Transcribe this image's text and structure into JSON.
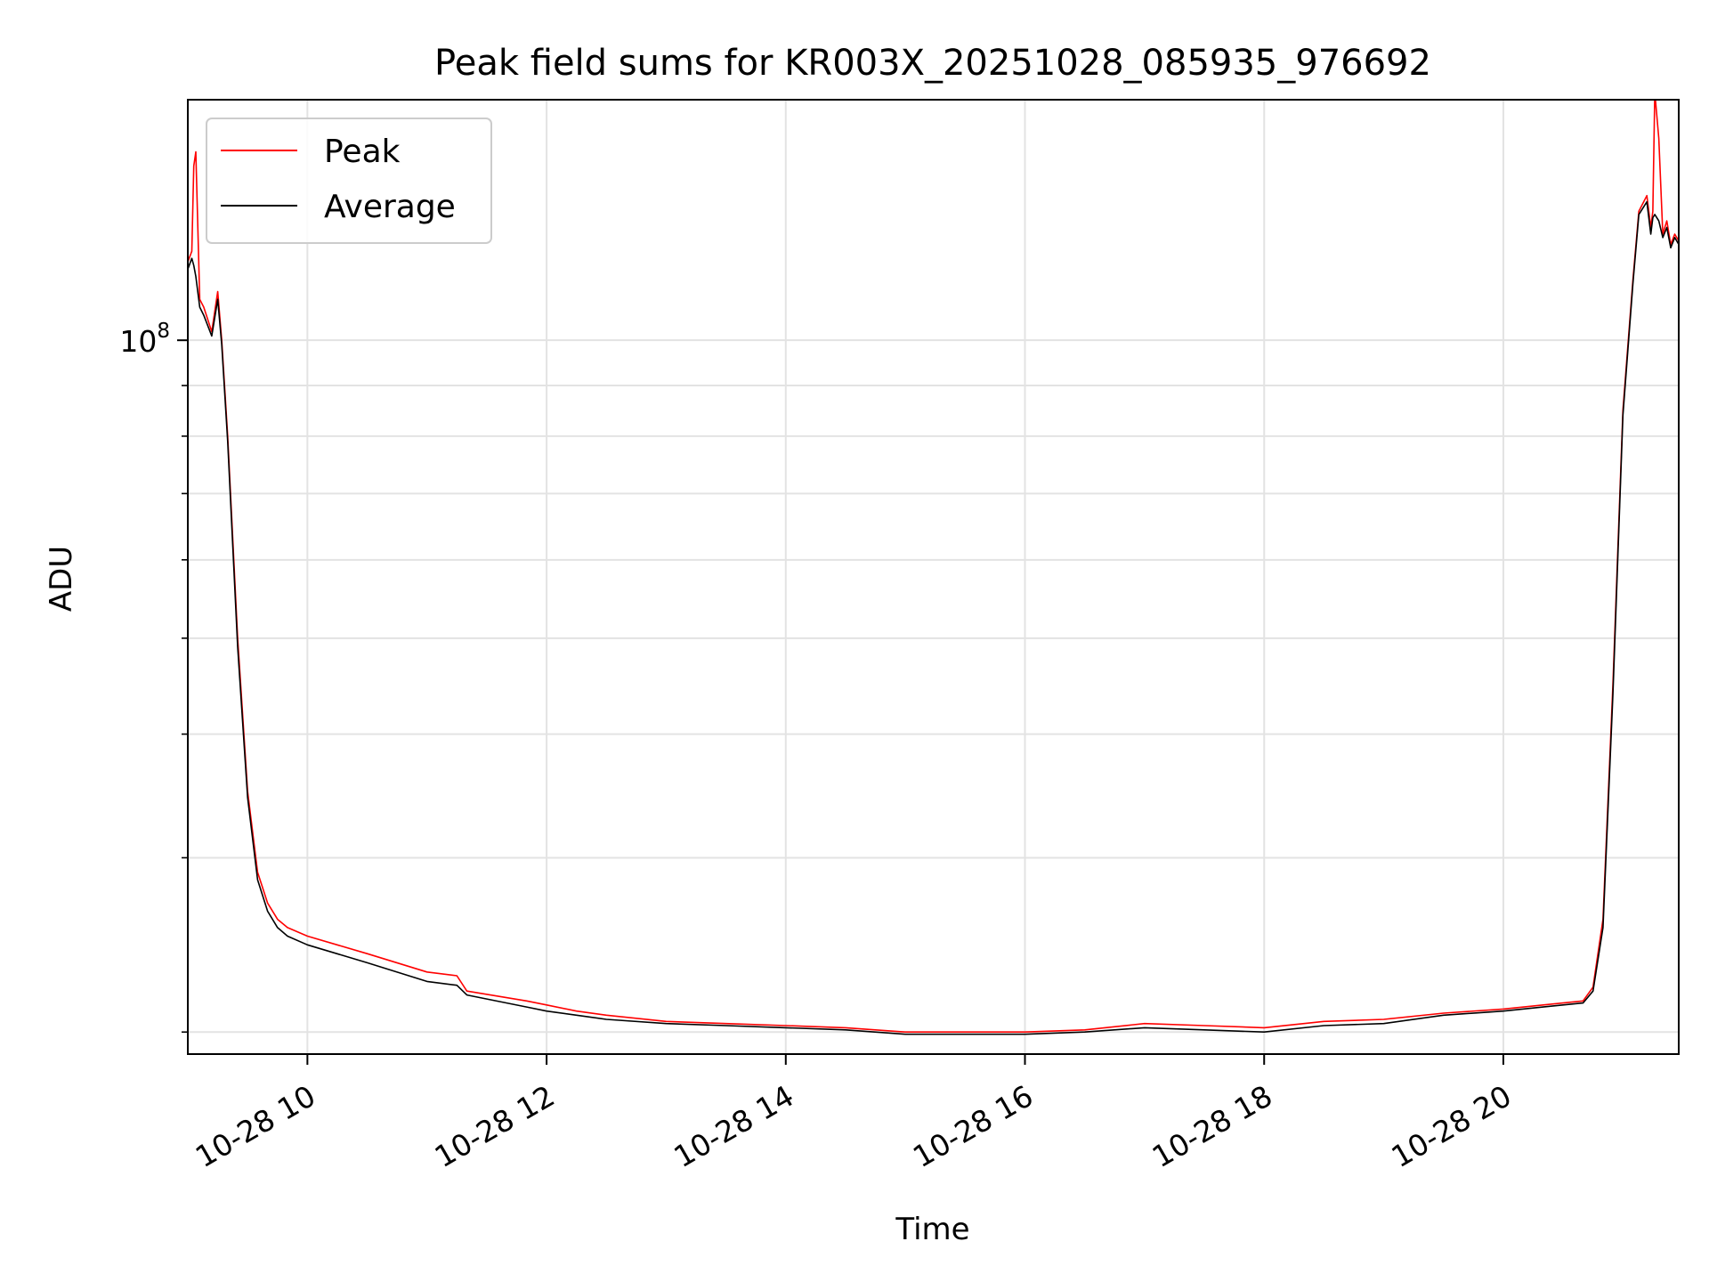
{
  "chart_data": {
    "type": "line",
    "title": "Peak field sums for KR003X_20251028_085935_976692",
    "xlabel": "Time",
    "ylabel": "ADU",
    "yscale": "log",
    "grid": true,
    "legend_location": "upper-left",
    "x_tick_labels": [
      "10-28 10",
      "10-28 12",
      "10-28 14",
      "10-28 16",
      "10-28 18",
      "10-28 20"
    ],
    "x_ticks": [
      "2025-10-28 10:00",
      "2025-10-28 12:00",
      "2025-10-28 14:00",
      "2025-10-28 16:00",
      "2025-10-28 18:00",
      "2025-10-28 20:00"
    ],
    "xlim": [
      "2025-10-28 09:00",
      "2025-10-28 21:28"
    ],
    "y_major_ticks": [
      {
        "value": 100000000,
        "mantissa": "10",
        "exponent": "8"
      }
    ],
    "y_minor_ticks": [
      20000000,
      30000000,
      40000000,
      50000000,
      60000000,
      70000000,
      80000000,
      90000000
    ],
    "ylim": [
      19000000,
      175000000
    ],
    "series": [
      {
        "name": "Peak",
        "color": "#ff0000",
        "x": [
          "2025-10-28 09:00",
          "2025-10-28 09:02",
          "2025-10-28 09:03",
          "2025-10-28 09:04",
          "2025-10-28 09:06",
          "2025-10-28 09:08",
          "2025-10-28 09:12",
          "2025-10-28 09:15",
          "2025-10-28 09:17",
          "2025-10-28 09:20",
          "2025-10-28 09:25",
          "2025-10-28 09:30",
          "2025-10-28 09:35",
          "2025-10-28 09:40",
          "2025-10-28 09:45",
          "2025-10-28 09:50",
          "2025-10-28 10:00",
          "2025-10-28 10:30",
          "2025-10-28 11:00",
          "2025-10-28 11:15",
          "2025-10-28 11:20",
          "2025-10-28 11:50",
          "2025-10-28 12:00",
          "2025-10-28 12:15",
          "2025-10-28 12:30",
          "2025-10-28 13:00",
          "2025-10-28 13:30",
          "2025-10-28 14:00",
          "2025-10-28 14:30",
          "2025-10-28 15:00",
          "2025-10-28 15:30",
          "2025-10-28 16:00",
          "2025-10-28 16:30",
          "2025-10-28 17:00",
          "2025-10-28 17:30",
          "2025-10-28 18:00",
          "2025-10-28 18:30",
          "2025-10-28 19:00",
          "2025-10-28 19:30",
          "2025-10-28 20:00",
          "2025-10-28 20:20",
          "2025-10-28 20:40",
          "2025-10-28 20:45",
          "2025-10-28 20:50",
          "2025-10-28 20:55",
          "2025-10-28 21:00",
          "2025-10-28 21:05",
          "2025-10-28 21:08",
          "2025-10-28 21:12",
          "2025-10-28 21:14",
          "2025-10-28 21:15",
          "2025-10-28 21:16",
          "2025-10-28 21:18",
          "2025-10-28 21:20",
          "2025-10-28 21:22",
          "2025-10-28 21:24",
          "2025-10-28 21:26",
          "2025-10-28 21:28"
        ],
        "y": [
          120000000,
          123000000,
          150000000,
          155000000,
          110000000,
          108000000,
          102000000,
          112000000,
          100000000,
          80000000,
          50000000,
          35000000,
          29000000,
          27000000,
          26000000,
          25500000,
          25000000,
          24000000,
          23000000,
          22800000,
          22000000,
          21500000,
          21300000,
          21000000,
          20800000,
          20500000,
          20400000,
          20300000,
          20200000,
          20000000,
          20000000,
          20000000,
          20100000,
          20400000,
          20300000,
          20200000,
          20500000,
          20600000,
          20900000,
          21100000,
          21300000,
          21500000,
          22200000,
          26000000,
          45000000,
          85000000,
          115000000,
          135000000,
          140000000,
          130000000,
          135000000,
          178000000,
          160000000,
          128000000,
          132000000,
          125000000,
          128000000,
          126000000
        ]
      },
      {
        "name": "Average",
        "color": "#000000",
        "x": [
          "2025-10-28 09:00",
          "2025-10-28 09:02",
          "2025-10-28 09:03",
          "2025-10-28 09:04",
          "2025-10-28 09:06",
          "2025-10-28 09:08",
          "2025-10-28 09:12",
          "2025-10-28 09:15",
          "2025-10-28 09:17",
          "2025-10-28 09:20",
          "2025-10-28 09:25",
          "2025-10-28 09:30",
          "2025-10-28 09:35",
          "2025-10-28 09:40",
          "2025-10-28 09:45",
          "2025-10-28 09:50",
          "2025-10-28 10:00",
          "2025-10-28 10:30",
          "2025-10-28 11:00",
          "2025-10-28 11:15",
          "2025-10-28 11:20",
          "2025-10-28 11:50",
          "2025-10-28 12:00",
          "2025-10-28 12:15",
          "2025-10-28 12:30",
          "2025-10-28 13:00",
          "2025-10-28 13:30",
          "2025-10-28 14:00",
          "2025-10-28 14:30",
          "2025-10-28 15:00",
          "2025-10-28 15:30",
          "2025-10-28 16:00",
          "2025-10-28 16:30",
          "2025-10-28 17:00",
          "2025-10-28 17:30",
          "2025-10-28 18:00",
          "2025-10-28 18:30",
          "2025-10-28 19:00",
          "2025-10-28 19:30",
          "2025-10-28 20:00",
          "2025-10-28 20:20",
          "2025-10-28 20:40",
          "2025-10-28 20:45",
          "2025-10-28 20:50",
          "2025-10-28 20:55",
          "2025-10-28 21:00",
          "2025-10-28 21:05",
          "2025-10-28 21:08",
          "2025-10-28 21:12",
          "2025-10-28 21:14",
          "2025-10-28 21:15",
          "2025-10-28 21:16",
          "2025-10-28 21:18",
          "2025-10-28 21:20",
          "2025-10-28 21:22",
          "2025-10-28 21:24",
          "2025-10-28 21:26",
          "2025-10-28 21:28"
        ],
        "y": [
          118000000,
          121000000,
          119000000,
          116000000,
          108000000,
          106000000,
          101000000,
          110000000,
          99000000,
          79000000,
          49000000,
          34500000,
          28500000,
          26500000,
          25500000,
          25000000,
          24500000,
          23500000,
          22500000,
          22300000,
          21800000,
          21200000,
          21000000,
          20800000,
          20600000,
          20400000,
          20300000,
          20200000,
          20100000,
          19900000,
          19900000,
          19900000,
          20000000,
          20200000,
          20100000,
          20000000,
          20300000,
          20400000,
          20800000,
          21000000,
          21200000,
          21400000,
          22000000,
          25500000,
          44000000,
          84000000,
          114000000,
          134000000,
          138000000,
          128000000,
          133000000,
          134000000,
          132000000,
          127000000,
          130000000,
          124000000,
          127000000,
          125000000
        ]
      }
    ]
  }
}
